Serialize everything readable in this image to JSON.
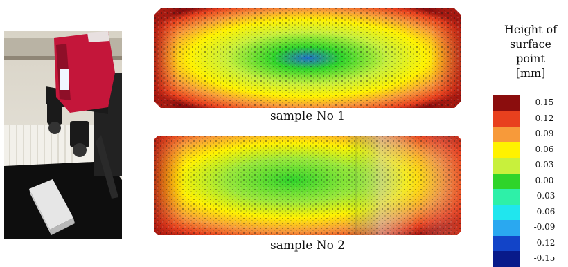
{
  "captions": {
    "sample1": "sample No 1",
    "sample2": "sample No 2"
  },
  "legend": {
    "title": "Height of surface point [mm]",
    "title_lines": [
      "Height of",
      "surface",
      "point",
      "[mm]"
    ],
    "entries": [
      {
        "value": "0.15",
        "color": "#8b0d0d"
      },
      {
        "value": "0.12",
        "color": "#e8401e"
      },
      {
        "value": "0.09",
        "color": "#f79a3a"
      },
      {
        "value": "0.06",
        "color": "#fff200"
      },
      {
        "value": "0.03",
        "color": "#c8f03c"
      },
      {
        "value": "0.00",
        "color": "#2fd42a"
      },
      {
        "value": "-0.03",
        "color": "#2ef0a8"
      },
      {
        "value": "-0.06",
        "color": "#20e6ee"
      },
      {
        "value": "-0.09",
        "color": "#2aa8f0"
      },
      {
        "value": "-0.12",
        "color": "#1244c8"
      },
      {
        "value": "-0.15",
        "color": "#081a8a"
      }
    ]
  },
  "photo": {
    "description_icons": [
      "scanner-icon",
      "sample-block-icon"
    ],
    "colors": {
      "scanner": "#c4163a",
      "cloth": "#0e0e0e",
      "wall": "#e8e4da"
    }
  }
}
